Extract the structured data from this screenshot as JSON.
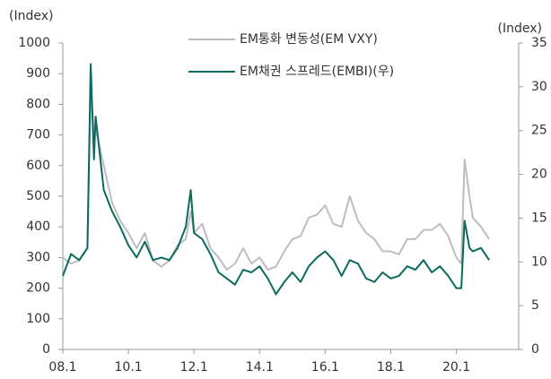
{
  "chart_data": {
    "type": "line",
    "ylabel": "(Index)",
    "y2label": "(Index)",
    "x": [
      2008.0,
      2008.25,
      2008.5,
      2008.75,
      2008.85,
      2008.95,
      2009.0,
      2009.25,
      2009.5,
      2009.75,
      2010.0,
      2010.25,
      2010.5,
      2010.75,
      2011.0,
      2011.25,
      2011.5,
      2011.75,
      2011.9,
      2012.0,
      2012.25,
      2012.5,
      2012.75,
      2013.0,
      2013.25,
      2013.5,
      2013.75,
      2014.0,
      2014.25,
      2014.5,
      2014.75,
      2015.0,
      2015.25,
      2015.5,
      2015.75,
      2016.0,
      2016.25,
      2016.5,
      2016.75,
      2017.0,
      2017.25,
      2017.5,
      2017.75,
      2018.0,
      2018.25,
      2018.5,
      2018.75,
      2019.0,
      2019.25,
      2019.5,
      2019.75,
      2020.0,
      2020.15,
      2020.25,
      2020.4,
      2020.5,
      2020.75,
      2021.0
    ],
    "series": [
      {
        "name": "EM통화 변동성(EM VXY)",
        "color": "#bdbdbd",
        "values": [
          300,
          280,
          290,
          330,
          850,
          700,
          720,
          600,
          480,
          420,
          380,
          330,
          380,
          290,
          270,
          290,
          340,
          360,
          450,
          380,
          410,
          330,
          300,
          260,
          280,
          330,
          280,
          300,
          260,
          270,
          320,
          360,
          370,
          430,
          440,
          470,
          410,
          400,
          500,
          420,
          380,
          360,
          320,
          320,
          310,
          360,
          360,
          390,
          390,
          410,
          370,
          300,
          280,
          620,
          500,
          430,
          400,
          360
        ]
      },
      {
        "name": "EM채권 스프레드(EMBI)(우)",
        "color": "#0b6a5e",
        "axis": "y2",
        "values": [
          8.4,
          10.9,
          10.2,
          11.6,
          32.6,
          21.7,
          26.6,
          18.2,
          15.8,
          14,
          11.9,
          10.5,
          12.3,
          10.2,
          10.5,
          10.2,
          11.6,
          14,
          18.2,
          13.3,
          12.6,
          10.9,
          8.8,
          8.1,
          7.4,
          9.1,
          8.8,
          9.5,
          8.1,
          6.3,
          7.7,
          8.8,
          7.7,
          9.5,
          10.5,
          11.2,
          10.2,
          8.4,
          10.2,
          9.8,
          8.1,
          7.7,
          8.8,
          8.1,
          8.4,
          9.5,
          9.1,
          10.2,
          8.8,
          9.5,
          8.4,
          7,
          7,
          14.7,
          11.6,
          11.2,
          11.6,
          10.2
        ]
      }
    ],
    "xlim": [
      2008,
      2021.9
    ],
    "xticks": [
      {
        "value": 2008,
        "label": "08.1"
      },
      {
        "value": 2010,
        "label": "10.1"
      },
      {
        "value": 2012,
        "label": "12.1"
      },
      {
        "value": 2014,
        "label": "14.1"
      },
      {
        "value": 2016,
        "label": "16.1"
      },
      {
        "value": 2018,
        "label": "18.1"
      },
      {
        "value": 2020,
        "label": "20.1"
      }
    ],
    "ylim": [
      0,
      1000
    ],
    "yticks": [
      0,
      100,
      200,
      300,
      400,
      500,
      600,
      700,
      800,
      900,
      1000
    ],
    "y2lim": [
      0,
      35
    ],
    "y2ticks": [
      0,
      5,
      10,
      15,
      20,
      25,
      30,
      35
    ],
    "legend": "top"
  }
}
